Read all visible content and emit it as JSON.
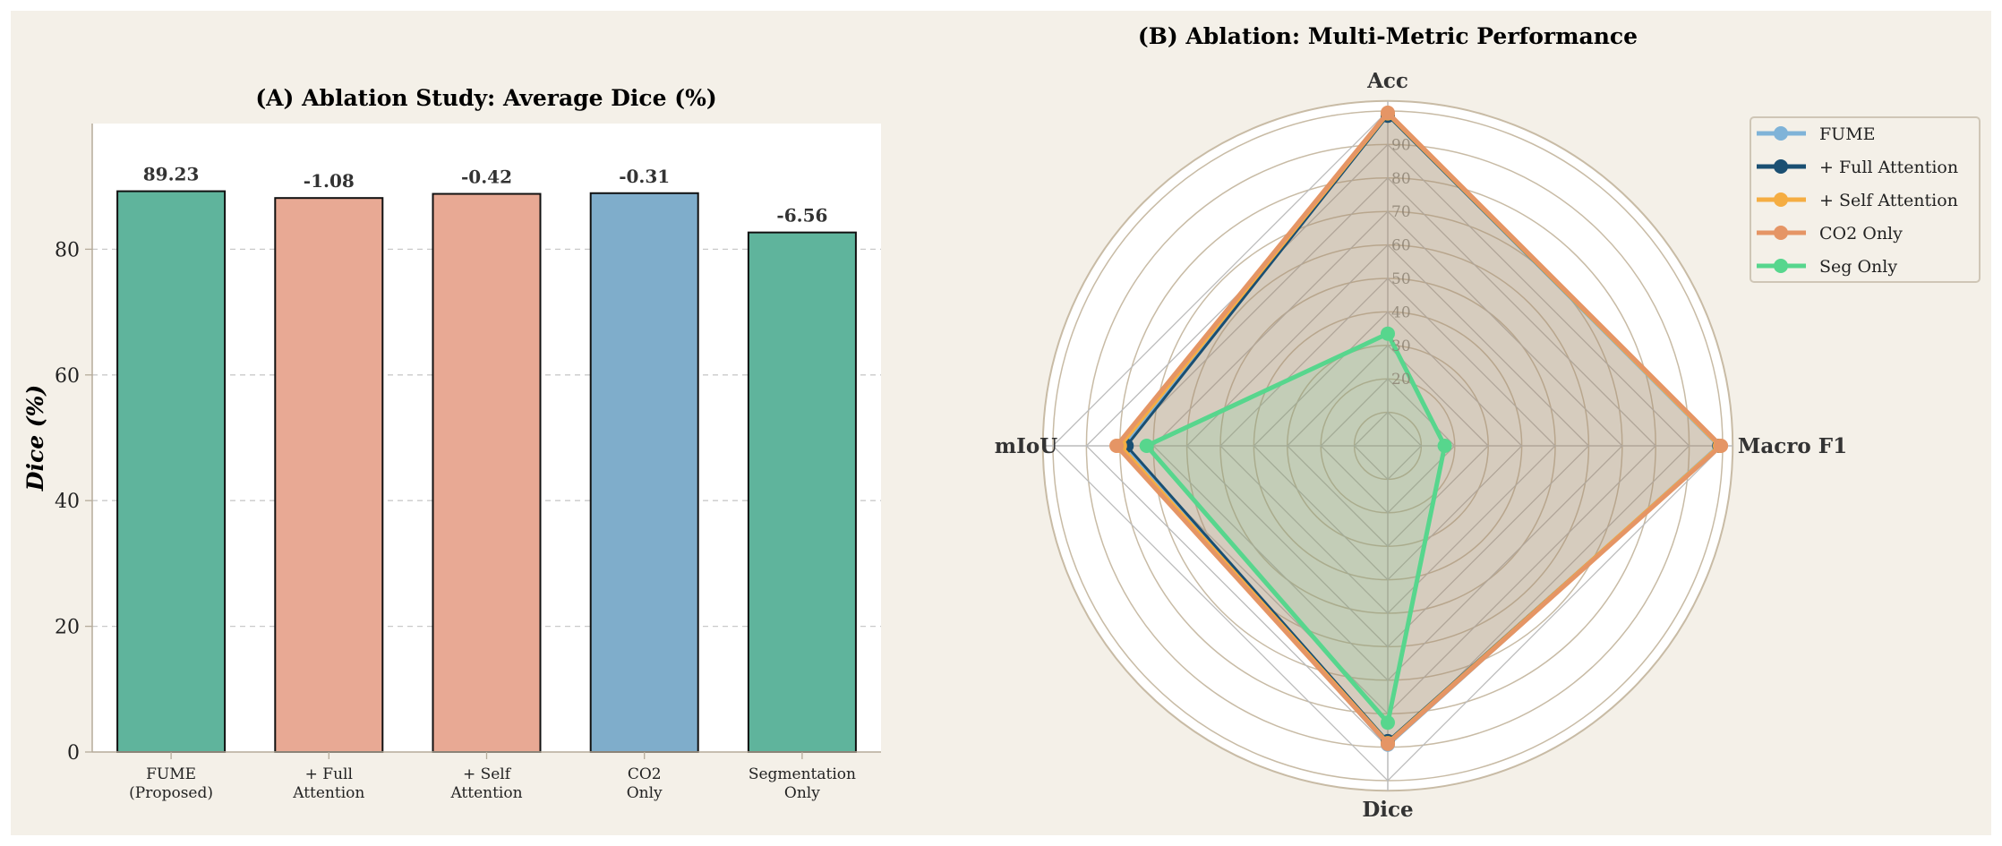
{
  "colors": {
    "background": "#f4f0e8",
    "bar_green": "#5fb49c",
    "bar_salmon": "#e8a994",
    "bar_blue": "#7fadcb",
    "grid": "#c8bfae"
  },
  "chart_data": [
    {
      "type": "bar",
      "title": "(A) Ablation Study: Average Dice (%)",
      "xlabel": "",
      "ylabel": "Dice (%)",
      "ylim": [
        0,
        100
      ],
      "yticks": [
        0,
        20,
        40,
        60,
        80
      ],
      "grid": "horizontal dashed",
      "categories": [
        [
          "FUME",
          "(Proposed)"
        ],
        [
          "+ Full",
          "Attention"
        ],
        [
          "+ Self",
          "Attention"
        ],
        [
          "CO2",
          "Only"
        ],
        [
          "Segmentation",
          "Only"
        ]
      ],
      "values": [
        89.23,
        88.15,
        88.81,
        88.92,
        82.67
      ],
      "data_labels": [
        "89.23",
        "-1.08",
        "-0.42",
        "-0.31",
        "-6.56"
      ],
      "bar_colors": [
        "#5fb49c",
        "#e8a994",
        "#e8a994",
        "#7fadcb",
        "#5fb49c"
      ]
    },
    {
      "type": "radar",
      "title": "(B) Ablation: Multi-Metric Performance",
      "axes": [
        "Acc",
        "Macro F1",
        "Dice",
        "mIoU"
      ],
      "rlim": [
        0,
        100
      ],
      "rticks": [
        "20",
        "30",
        "40",
        "50",
        "60",
        "70",
        "80",
        "90"
      ],
      "legend_placement": "top-right",
      "series": [
        {
          "name": "FUME",
          "color": "#7fb3d8",
          "values": [
            99.0,
            99.0,
            89.23,
            79.0
          ]
        },
        {
          "name": "+ Full Attention",
          "color": "#1a4f72",
          "values": [
            98.6,
            99.0,
            88.2,
            78.0
          ]
        },
        {
          "name": "+ Self Attention",
          "color": "#f5ad42",
          "values": [
            99.3,
            99.2,
            88.8,
            80.0
          ]
        },
        {
          "name": "CO2 Only",
          "color": "#e59565",
          "values": [
            99.5,
            99.5,
            89.0,
            81.0
          ]
        },
        {
          "name": "Seg Only",
          "color": "#57d68d",
          "values": [
            33.5,
            17.0,
            82.67,
            72.0
          ]
        }
      ]
    }
  ]
}
